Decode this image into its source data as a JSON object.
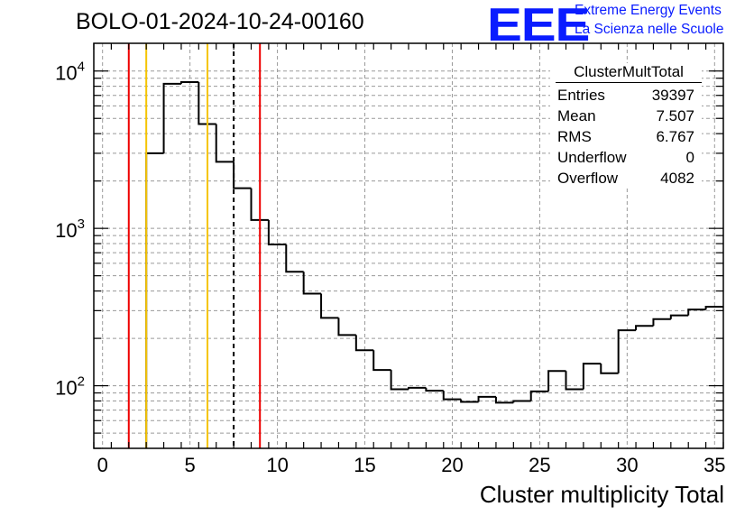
{
  "header": {
    "title": "BOLO-01-2024-10-24-00160"
  },
  "logo": {
    "mark": "EEE",
    "line1": "Extreme Energy Events",
    "line2": "La Scienza nelle Scuole"
  },
  "stats_box": {
    "title": "ClusterMultTotal",
    "rows": [
      {
        "label": "Entries",
        "value": "39397"
      },
      {
        "label": "Mean",
        "value": "7.507"
      },
      {
        "label": "RMS",
        "value": "6.767"
      },
      {
        "label": "Underflow",
        "value": "0"
      },
      {
        "label": "Overflow",
        "value": "4082"
      }
    ]
  },
  "chart_data": {
    "type": "histogram",
    "title": "BOLO-01-2024-10-24-00160",
    "xlabel": "Cluster multiplicity Total",
    "ylabel": "",
    "xlim": [
      -0.5,
      35.5
    ],
    "ylim": [
      40,
      15000
    ],
    "y_scale": "log",
    "grid": true,
    "x_ticks": [
      0,
      5,
      10,
      15,
      20,
      25,
      30,
      35
    ],
    "y_ticks": [
      {
        "value": 100,
        "base": "10",
        "exp": "2"
      },
      {
        "value": 1000,
        "base": "10",
        "exp": "3"
      },
      {
        "value": 10000,
        "base": "10",
        "exp": "4"
      }
    ],
    "bin_edges": [
      -0.5,
      0.5,
      1.5,
      2.5,
      3.5,
      4.5,
      5.5,
      6.5,
      7.5,
      8.5,
      9.5,
      10.5,
      11.5,
      12.5,
      13.5,
      14.5,
      15.5,
      16.5,
      17.5,
      18.5,
      19.5,
      20.5,
      21.5,
      22.5,
      23.5,
      24.5,
      25.5,
      26.5,
      27.5,
      28.5,
      29.5,
      30.5,
      31.5,
      32.5,
      33.5,
      34.5,
      35.5
    ],
    "counts": [
      0,
      0,
      0,
      3000,
      8300,
      8500,
      4600,
      2650,
      1800,
      1130,
      790,
      530,
      385,
      270,
      210,
      168,
      126,
      95,
      97,
      93,
      82,
      79,
      85,
      78,
      80,
      92,
      124,
      95,
      138,
      120,
      225,
      240,
      265,
      280,
      305,
      318
    ],
    "line_color": "#000000",
    "vertical_lines": [
      {
        "x": 1.5,
        "color": "#ee0000",
        "style": "solid"
      },
      {
        "x": 2.5,
        "color": "#f5c400",
        "style": "solid"
      },
      {
        "x": 6.0,
        "color": "#f5c400",
        "style": "solid"
      },
      {
        "x": 7.5,
        "color": "#000000",
        "style": "dashed"
      },
      {
        "x": 9.0,
        "color": "#ee0000",
        "style": "solid"
      }
    ],
    "stats_position": "top-right"
  }
}
